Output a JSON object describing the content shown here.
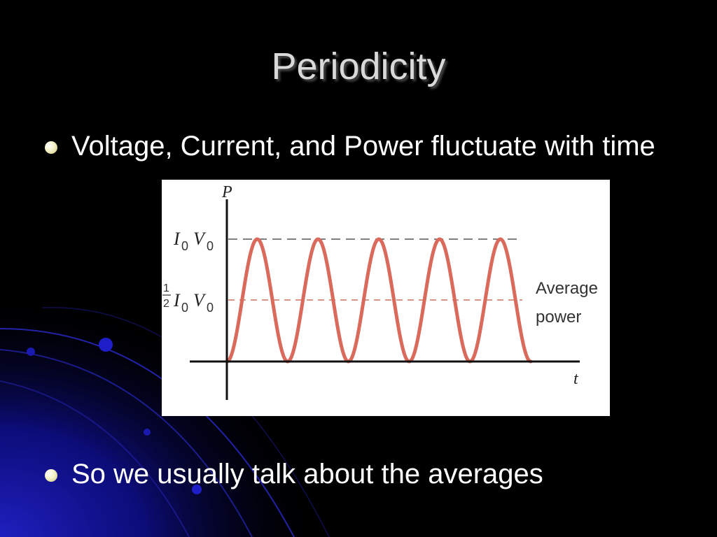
{
  "slide": {
    "title": "Periodicity",
    "bullets": [
      {
        "text": "Voltage, Current, and Power fluctuate with time"
      },
      {
        "text": "So we usually talk about the averages"
      }
    ]
  },
  "colors": {
    "background": "#000000",
    "accent_blue": "#1a1aa6",
    "title_text": "#d9d9d9",
    "body_text": "#ffffff",
    "curve": "#d96a5c",
    "average_line": "#c9755f",
    "peak_line": "#555555"
  },
  "figure": {
    "y_axis_label": "P",
    "x_axis_label": "t",
    "peak_label": {
      "I": "I",
      "I_sub": "0",
      "V": "V",
      "V_sub": "0"
    },
    "average_label": {
      "frac_num": "1",
      "frac_den": "2",
      "I": "I",
      "I_sub": "0",
      "V": "V",
      "V_sub": "0"
    },
    "annotation": {
      "line1": "Average",
      "line2": "power"
    }
  },
  "chart_data": {
    "type": "line",
    "title": "",
    "xlabel": "t",
    "ylabel": "P",
    "series": [
      {
        "function": "P = I0V0 · sin²(ωt)",
        "cycles": 5,
        "min": 0,
        "max": 1,
        "units": "I0V0"
      }
    ],
    "reference_lines": [
      {
        "label": "I0V0",
        "value": 1,
        "style": "dashed"
      },
      {
        "label": "1/2 I0V0",
        "value": 0.5,
        "style": "dashed",
        "annotation": "Average power"
      }
    ]
  }
}
